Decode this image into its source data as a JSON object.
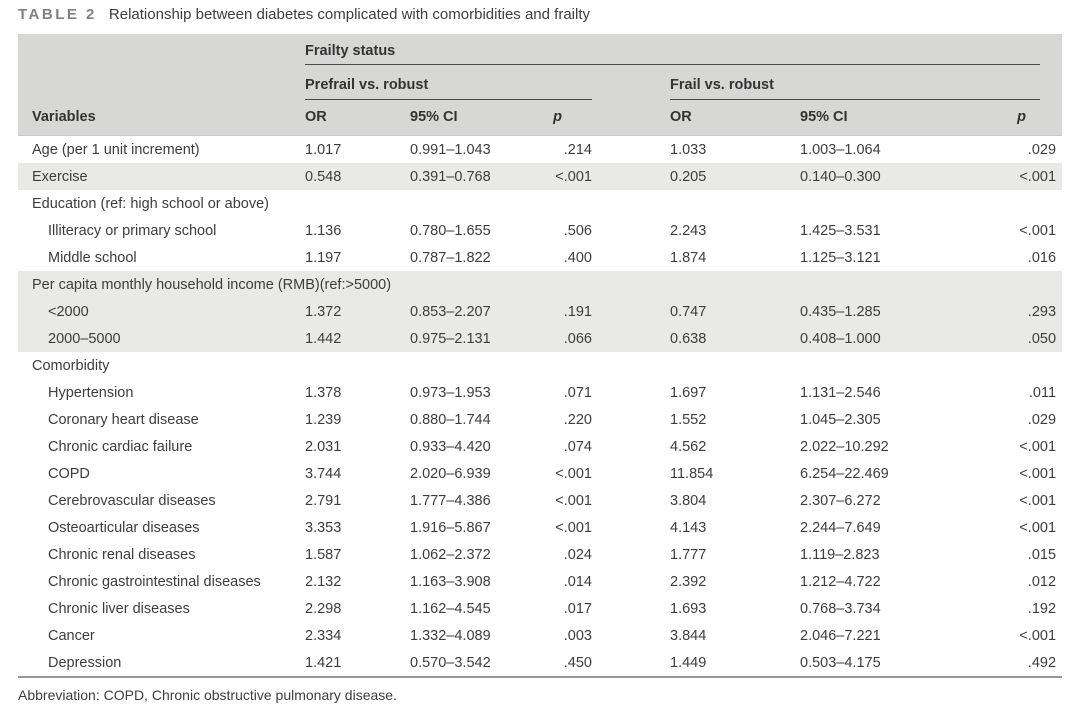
{
  "title": {
    "label": "TABLE 2",
    "text": "Relationship between diabetes complicated with comorbidities and frailty"
  },
  "colors": {
    "header_background": "#d7d7d6",
    "shaded_row_background": "#e9e9e8",
    "text": "#3d3d3d"
  },
  "table": {
    "group_header": "Frailty status",
    "subgroups": [
      "Prefrail vs. robust",
      "Frail vs. robust"
    ],
    "columns": {
      "variables": "Variables",
      "or": "OR",
      "ci": "95% CI",
      "p": "p"
    },
    "rows": [
      {
        "type": "data",
        "indent": false,
        "shaded": false,
        "label": "Age (per 1 unit increment)",
        "or1": "1.017",
        "ci1": "0.991–1.043",
        "p1": ".214",
        "or2": "1.033",
        "ci2": "1.003–1.064",
        "p2": ".029"
      },
      {
        "type": "data",
        "indent": false,
        "shaded": true,
        "label": "Exercise",
        "or1": "0.548",
        "ci1": "0.391–0.768",
        "p1": "<.001",
        "or2": "0.205",
        "ci2": "0.140–0.300",
        "p2": "<.001"
      },
      {
        "type": "group",
        "shaded": false,
        "label": "Education (ref: high school or above)"
      },
      {
        "type": "data",
        "indent": true,
        "shaded": false,
        "label": "Illiteracy or primary school",
        "or1": "1.136",
        "ci1": "0.780–1.655",
        "p1": ".506",
        "or2": "2.243",
        "ci2": "1.425–3.531",
        "p2": "<.001"
      },
      {
        "type": "data",
        "indent": true,
        "shaded": false,
        "label": "Middle school",
        "or1": "1.197",
        "ci1": "0.787–1.822",
        "p1": ".400",
        "or2": "1.874",
        "ci2": "1.125–3.121",
        "p2": ".016"
      },
      {
        "type": "group",
        "shaded": true,
        "label": "Per capita monthly household income (RMB)(ref:>5000)"
      },
      {
        "type": "data",
        "indent": true,
        "shaded": true,
        "label": "<2000",
        "or1": "1.372",
        "ci1": "0.853–2.207",
        "p1": ".191",
        "or2": "0.747",
        "ci2": "0.435–1.285",
        "p2": ".293"
      },
      {
        "type": "data",
        "indent": true,
        "shaded": true,
        "label": "2000–5000",
        "or1": "1.442",
        "ci1": "0.975–2.131",
        "p1": ".066",
        "or2": "0.638",
        "ci2": "0.408–1.000",
        "p2": ".050"
      },
      {
        "type": "group",
        "shaded": false,
        "label": "Comorbidity"
      },
      {
        "type": "data",
        "indent": true,
        "shaded": false,
        "label": "Hypertension",
        "or1": "1.378",
        "ci1": "0.973–1.953",
        "p1": ".071",
        "or2": "1.697",
        "ci2": "1.131–2.546",
        "p2": ".011"
      },
      {
        "type": "data",
        "indent": true,
        "shaded": false,
        "label": "Coronary heart disease",
        "or1": "1.239",
        "ci1": "0.880–1.744",
        "p1": ".220",
        "or2": "1.552",
        "ci2": "1.045–2.305",
        "p2": ".029"
      },
      {
        "type": "data",
        "indent": true,
        "shaded": false,
        "label": "Chronic cardiac failure",
        "or1": "2.031",
        "ci1": "0.933–4.420",
        "p1": ".074",
        "or2": "4.562",
        "ci2": "2.022–10.292",
        "p2": "<.001"
      },
      {
        "type": "data",
        "indent": true,
        "shaded": false,
        "label": "COPD",
        "or1": "3.744",
        "ci1": "2.020–6.939",
        "p1": "<.001",
        "or2": "11.854",
        "ci2": "6.254–22.469",
        "p2": "<.001"
      },
      {
        "type": "data",
        "indent": true,
        "shaded": false,
        "label": "Cerebrovascular diseases",
        "or1": "2.791",
        "ci1": "1.777–4.386",
        "p1": "<.001",
        "or2": "3.804",
        "ci2": "2.307–6.272",
        "p2": "<.001"
      },
      {
        "type": "data",
        "indent": true,
        "shaded": false,
        "label": "Osteoarticular diseases",
        "or1": "3.353",
        "ci1": "1.916–5.867",
        "p1": "<.001",
        "or2": "4.143",
        "ci2": "2.244–7.649",
        "p2": "<.001"
      },
      {
        "type": "data",
        "indent": true,
        "shaded": false,
        "label": "Chronic renal diseases",
        "or1": "1.587",
        "ci1": "1.062–2.372",
        "p1": ".024",
        "or2": "1.777",
        "ci2": "1.119–2.823",
        "p2": ".015"
      },
      {
        "type": "data",
        "indent": true,
        "shaded": false,
        "label": "Chronic gastrointestinal diseases",
        "or1": "2.132",
        "ci1": "1.163–3.908",
        "p1": ".014",
        "or2": "2.392",
        "ci2": "1.212–4.722",
        "p2": ".012"
      },
      {
        "type": "data",
        "indent": true,
        "shaded": false,
        "label": "Chronic liver diseases",
        "or1": "2.298",
        "ci1": "1.162–4.545",
        "p1": ".017",
        "or2": "1.693",
        "ci2": "0.768–3.734",
        "p2": ".192"
      },
      {
        "type": "data",
        "indent": true,
        "shaded": false,
        "label": "Cancer",
        "or1": "2.334",
        "ci1": "1.332–4.089",
        "p1": ".003",
        "or2": "3.844",
        "ci2": "2.046–7.221",
        "p2": "<.001"
      },
      {
        "type": "data",
        "indent": true,
        "shaded": false,
        "label": "Depression",
        "or1": "1.421",
        "ci1": "0.570–3.542",
        "p1": ".450",
        "or2": "1.449",
        "ci2": "0.503–4.175",
        "p2": ".492"
      }
    ]
  },
  "footnote": "Abbreviation: COPD, Chronic obstructive pulmonary disease."
}
